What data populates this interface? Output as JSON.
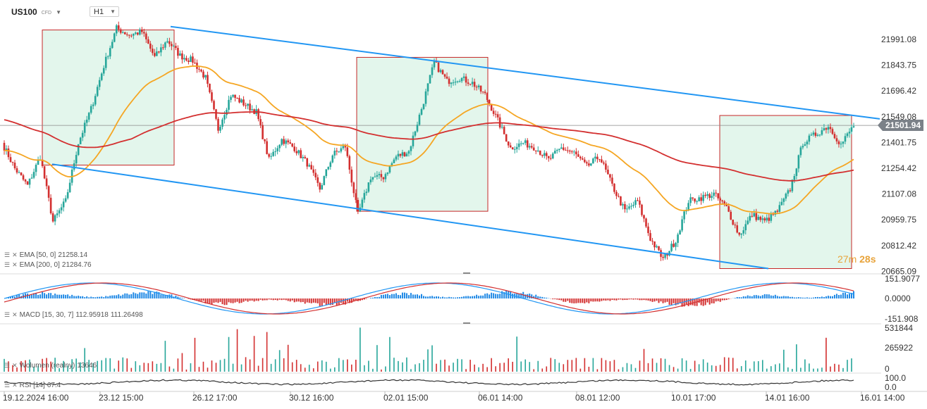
{
  "header": {
    "symbol": "US100",
    "instrument_type": "CFD",
    "timeframe": "H1",
    "caret": "▼"
  },
  "colors": {
    "up": "#26a69a",
    "down": "#d32f2f",
    "channel": "#2196f3",
    "ema50": "#f5a623",
    "ema200": "#d32f2f",
    "box_fill": "#e3f6ec",
    "box_border": "#c62828",
    "macd_line": "#2196f3",
    "signal_line": "#d32f2f"
  },
  "price_axis": {
    "ticks": [
      "21991.08",
      "21843.75",
      "21696.42",
      "21549.08",
      "21401.75",
      "21254.42",
      "21107.08",
      "20959.75",
      "20812.42",
      "20665.09"
    ]
  },
  "current_price": "21501.94",
  "countdown": {
    "minutes": "27m",
    "seconds": "28s"
  },
  "indicators": {
    "ema50": {
      "label": "EMA [50, 0]",
      "value": "21258.14"
    },
    "ema200": {
      "label": "EMA [200, 0]",
      "value": "21284.76"
    },
    "macd": {
      "label": "MACD [15, 30, 7]",
      "value1": "112.95918",
      "value2": "111.26498",
      "axis": [
        "151.9077",
        "0.0000",
        "-151.908"
      ]
    },
    "volume": {
      "label": "Wolumen (realny)",
      "value": "13646",
      "axis": [
        "531844",
        "265922",
        "0"
      ]
    },
    "rsi": {
      "label": "RSI [14]",
      "value": "67.4",
      "axis": [
        "100.0",
        "0.0"
      ]
    }
  },
  "time_axis": [
    "19.12.2024  16:00",
    "23.12  15:00",
    "26.12  17:00",
    "30.12  16:00",
    "02.01  15:00",
    "06.01  14:00",
    "08.01  12:00",
    "10.01  17:00",
    "14.01  16:00",
    "16.01  14:00"
  ],
  "chart_data": {
    "type": "candlestick",
    "symbol": "US100",
    "timeframe": "H1",
    "y_range": [
      20630,
      22120
    ],
    "close_path": [
      21400,
      21250,
      21150,
      21320,
      20940,
      21060,
      21400,
      21600,
      21850,
      22070,
      22030,
      22050,
      21900,
      22000,
      21910,
      21880,
      21780,
      21480,
      21680,
      21630,
      21580,
      21300,
      21420,
      21370,
      21280,
      21130,
      21330,
      21380,
      20980,
      21200,
      21200,
      21320,
      21350,
      21600,
      21870,
      21760,
      21780,
      21750,
      21680,
      21530,
      21370,
      21400,
      21370,
      21300,
      21370,
      21340,
      21260,
      21320,
      21150,
      21000,
      21060,
      20840,
      20720,
      20830,
      21060,
      21080,
      21100,
      21020,
      20860,
      20980,
      20940,
      21000,
      21130,
      21400,
      21450,
      21500,
      21390,
      21502
    ],
    "price_channel": {
      "upper": {
        "from": {
          "date": "23.12",
          "price": 22080
        },
        "to": {
          "date": "16.01",
          "price": 21540
        }
      },
      "lower": {
        "from": {
          "date": "19.12",
          "price": 21275
        },
        "to": {
          "date": "16.01",
          "price": 20665
        }
      }
    },
    "highlight_boxes": [
      {
        "from": "19.12",
        "to": "23.12",
        "high": 22060,
        "low": 21270
      },
      {
        "from": "02.01",
        "to": "06.01",
        "high": 21900,
        "low": 21000
      },
      {
        "from": "10.01",
        "to": "16.01",
        "high": 21560,
        "low": 20665
      }
    ],
    "ema50": {
      "last": 21258.14
    },
    "ema200": {
      "last": 21284.76
    }
  }
}
